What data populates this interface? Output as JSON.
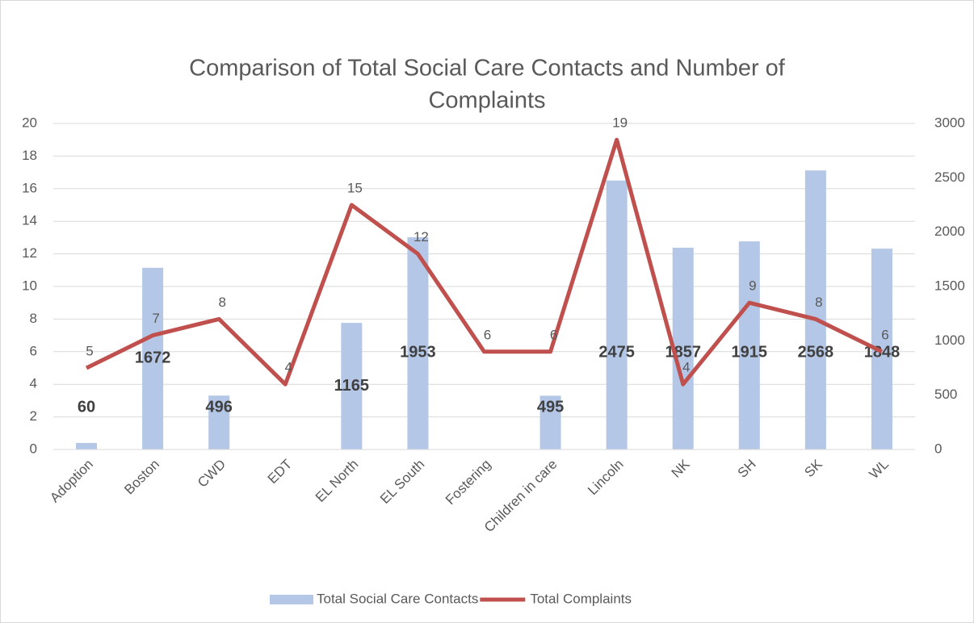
{
  "chart_data": {
    "type": "combo",
    "title": [
      "Comparison of Total Social Care Contacts and Number of",
      "Complaints"
    ],
    "categories": [
      "Adoption",
      "Boston",
      "CWD",
      "EDT",
      "EL North",
      "EL South",
      "Fostering",
      "Children in care",
      "Lincoln",
      "NK",
      "SH",
      "SK",
      "WL"
    ],
    "series": [
      {
        "name": "Total Social Care Contacts",
        "type": "bar",
        "axis": "y2",
        "color": "#b4c7e7",
        "values": [
          60,
          1672,
          496,
          null,
          1165,
          1953,
          null,
          495,
          2475,
          1857,
          1915,
          2568,
          1848
        ]
      },
      {
        "name": "Total Complaints",
        "type": "line",
        "color": "#c0504d",
        "values": [
          5,
          7,
          8,
          4,
          15,
          12,
          6,
          6,
          19,
          4,
          9,
          8,
          6
        ]
      }
    ],
    "ylim": [
      0,
      20
    ],
    "yticks": [
      0,
      2,
      4,
      6,
      8,
      10,
      12,
      14,
      16,
      18,
      20
    ],
    "y2lim": [
      0,
      3000
    ],
    "y2ticks": [
      0,
      500,
      1000,
      1500,
      2000,
      2500,
      3000
    ],
    "grid": true,
    "legend": "bottom"
  }
}
